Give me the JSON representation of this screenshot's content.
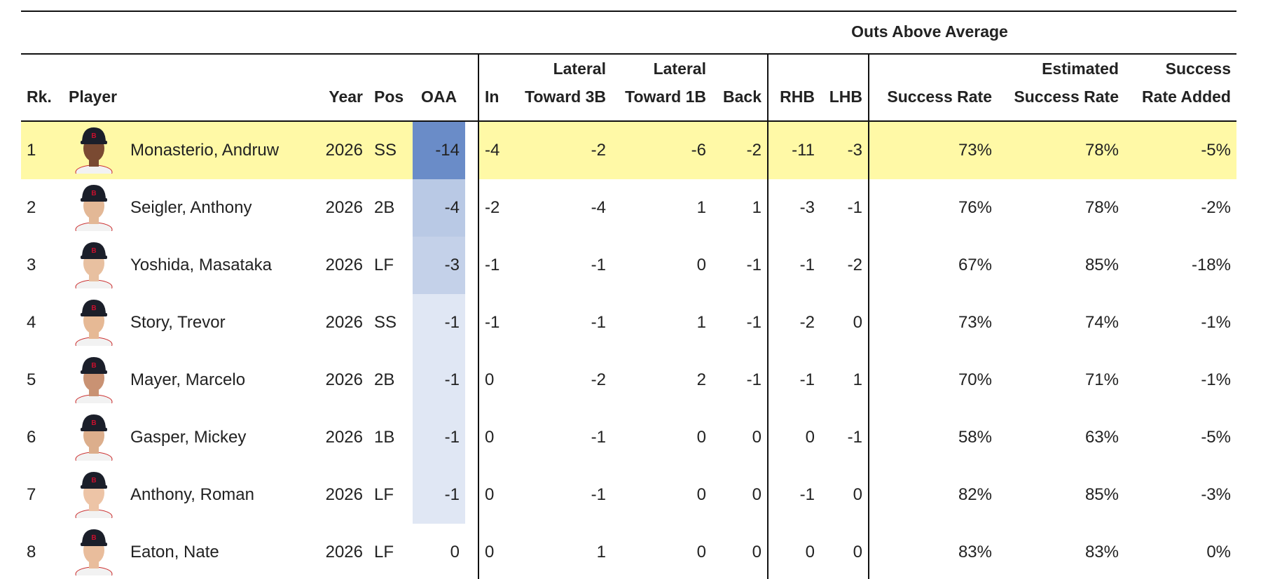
{
  "table": {
    "group_header": "Outs Above Average",
    "headers": [
      "Rk.",
      "Player",
      "Year",
      "Pos",
      "OAA",
      "In",
      "Lateral Toward 3B",
      "Lateral Toward 1B",
      "Back",
      "RHB",
      "LHB",
      "Success Rate",
      "Estimated Success Rate",
      "Success Rate Added"
    ],
    "rows": [
      [
        1,
        "Monasterio, Andruw",
        2026,
        "SS",
        -14,
        -4,
        -2,
        -6,
        -2,
        -11,
        -3,
        "73%",
        "78%",
        "-5%"
      ],
      [
        2,
        "Seigler, Anthony",
        2026,
        "2B",
        -4,
        -2,
        -4,
        1,
        1,
        -3,
        -1,
        "76%",
        "78%",
        "-2%"
      ],
      [
        3,
        "Yoshida, Masataka",
        2026,
        "LF",
        -3,
        -1,
        -1,
        0,
        -1,
        -1,
        -2,
        "67%",
        "85%",
        "-18%"
      ],
      [
        4,
        "Story, Trevor",
        2026,
        "SS",
        -1,
        -1,
        -1,
        1,
        -1,
        -2,
        0,
        "73%",
        "74%",
        "-1%"
      ],
      [
        5,
        "Mayer, Marcelo",
        2026,
        "2B",
        -1,
        0,
        -2,
        2,
        -1,
        -1,
        1,
        "70%",
        "71%",
        "-1%"
      ],
      [
        6,
        "Gasper, Mickey",
        2026,
        "1B",
        -1,
        0,
        -1,
        0,
        0,
        0,
        -1,
        "58%",
        "63%",
        "-5%"
      ],
      [
        7,
        "Anthony, Roman",
        2026,
        "LF",
        -1,
        0,
        -1,
        0,
        0,
        -1,
        0,
        "82%",
        "85%",
        "-3%"
      ],
      [
        8,
        "Eaton, Nate",
        2026,
        "LF",
        0,
        0,
        1,
        0,
        0,
        0,
        0,
        "83%",
        "83%",
        "0%"
      ]
    ]
  }
}
